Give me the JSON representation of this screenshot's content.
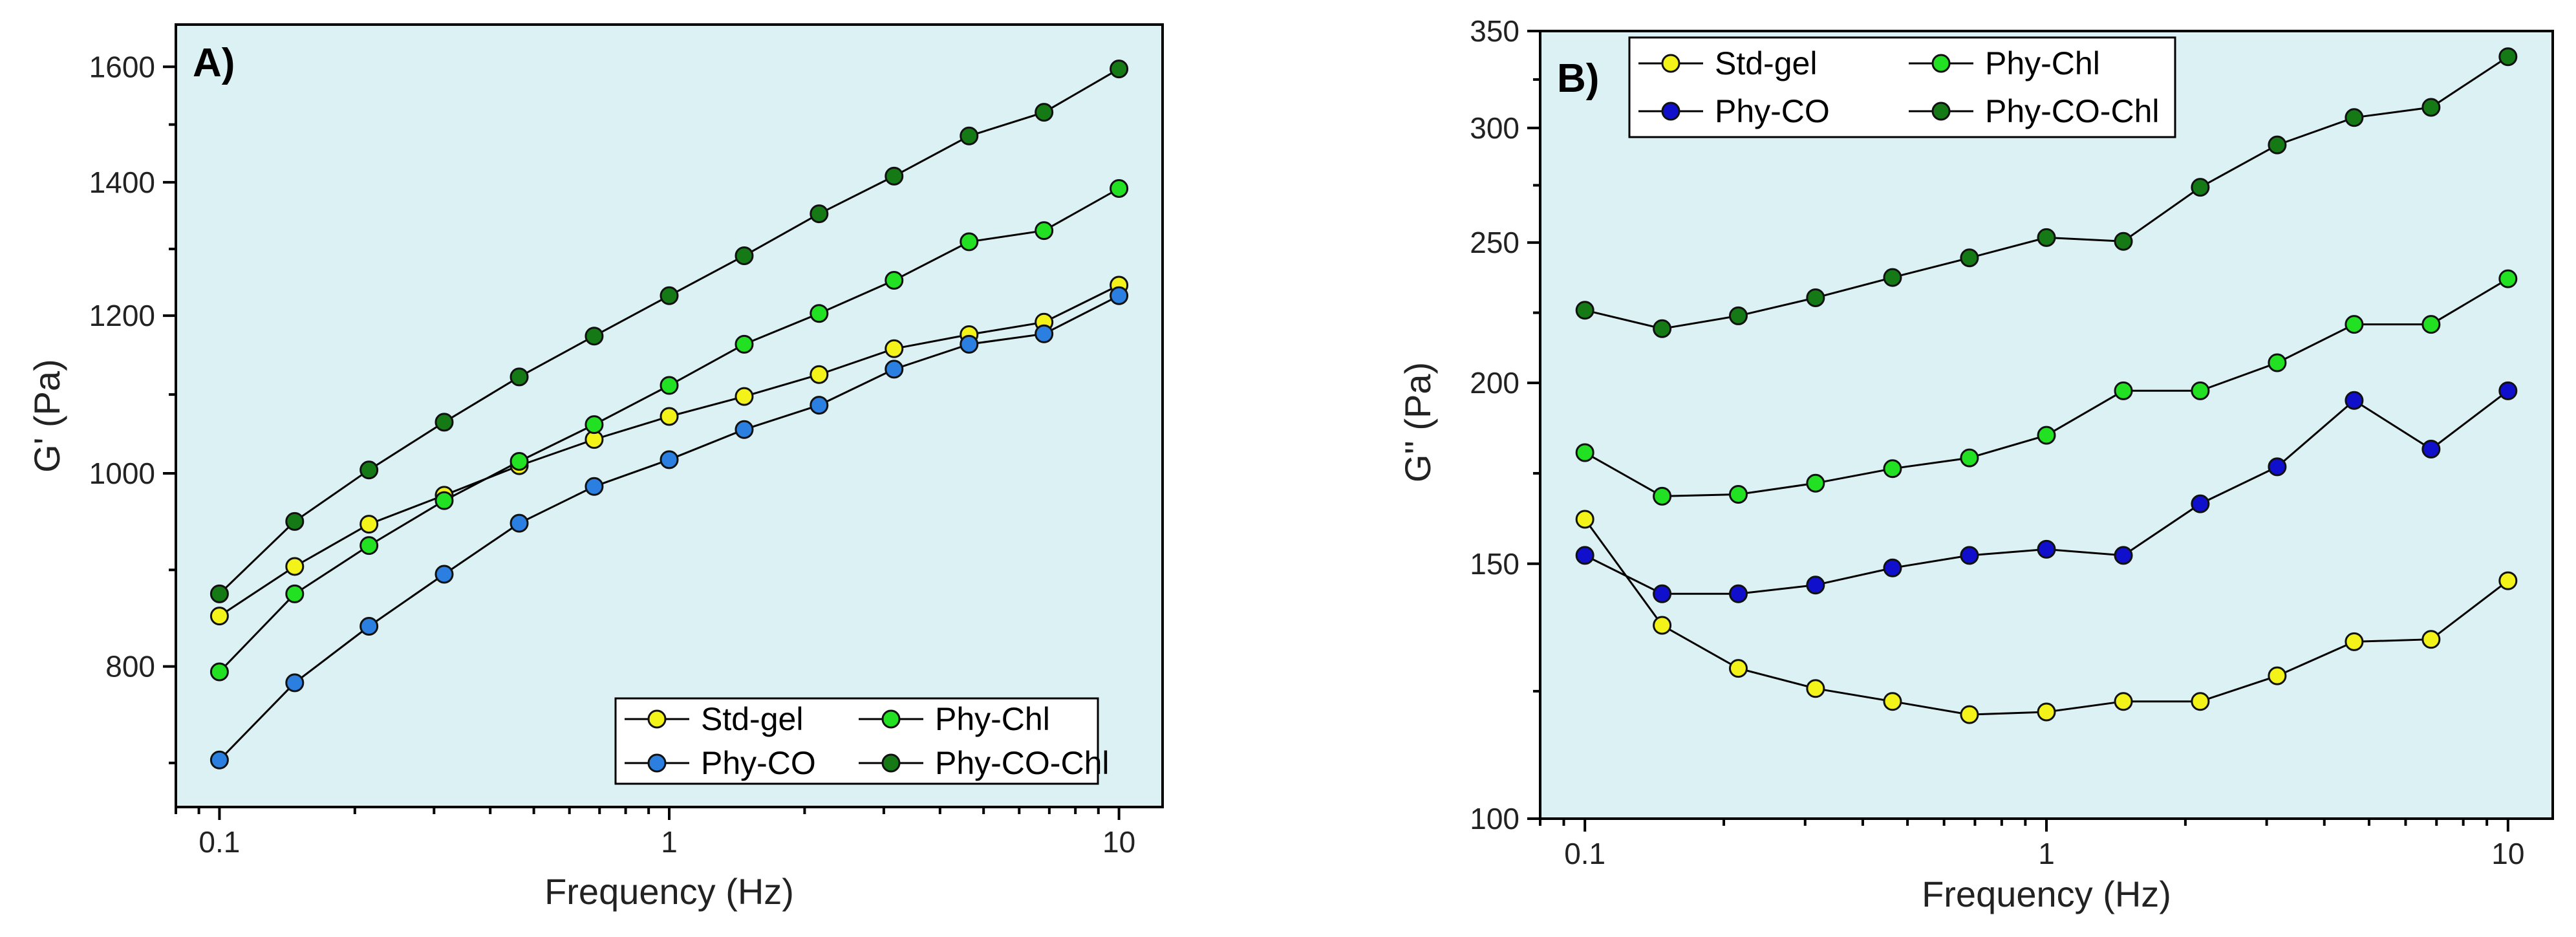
{
  "chart_data": [
    {
      "type": "line",
      "panel_label": "A)",
      "xlabel": "Frequency (Hz)",
      "ylabel": "G' (Pa)",
      "xscale": "log",
      "yscale": "log",
      "xlim": [
        0.08,
        12.5
      ],
      "ylim": [
        680,
        1680
      ],
      "x_ticks": [
        0.1,
        1,
        10
      ],
      "x_tick_labels": [
        "0.1",
        "1",
        "10"
      ],
      "y_ticks": [
        800,
        1000,
        1200,
        1400,
        1600
      ],
      "y_tick_labels": [
        "800",
        "1000",
        "1200",
        "1400",
        "1600"
      ],
      "legend_position": "bottom-right",
      "x": [
        0.1,
        0.147,
        0.215,
        0.316,
        0.464,
        0.681,
        1,
        1.468,
        2.154,
        3.162,
        4.642,
        6.813,
        10
      ],
      "series": [
        {
          "name": "Std-gel",
          "color": "#f3f31a",
          "values": [
            848,
            898,
            943,
            975,
            1009,
            1040,
            1068,
            1093,
            1121,
            1155,
            1174,
            1191,
            1243
          ]
        },
        {
          "name": "Phy-Chl",
          "color": "#22e022",
          "values": [
            795,
            870,
            920,
            969,
            1014,
            1058,
            1107,
            1161,
            1203,
            1250,
            1307,
            1324,
            1390
          ]
        },
        {
          "name": "Phy-CO",
          "color": "#2a7fe0",
          "values": [
            718,
            785,
            838,
            890,
            944,
            985,
            1016,
            1052,
            1082,
            1128,
            1161,
            1175,
            1228
          ]
        },
        {
          "name": "Phy-CO-Chl",
          "color": "#157a15",
          "values": [
            870,
            946,
            1004,
            1061,
            1118,
            1172,
            1228,
            1286,
            1350,
            1410,
            1477,
            1518,
            1596
          ]
        }
      ]
    },
    {
      "type": "line",
      "panel_label": "B)",
      "xlabel": "Frequency (Hz)",
      "ylabel": "G'' (Pa)",
      "xscale": "log",
      "yscale": "log",
      "xlim": [
        0.08,
        12.5
      ],
      "ylim": [
        100,
        350
      ],
      "x_ticks": [
        0.1,
        1,
        10
      ],
      "x_tick_labels": [
        "0.1",
        "1",
        "10"
      ],
      "y_ticks": [
        100,
        150,
        200,
        250,
        300,
        350
      ],
      "y_tick_labels": [
        "100",
        "150",
        "200",
        "250",
        "300",
        "350"
      ],
      "legend_position": "top-left",
      "x": [
        0.1,
        0.147,
        0.215,
        0.316,
        0.464,
        0.681,
        1,
        1.468,
        2.154,
        3.162,
        4.642,
        6.813,
        10
      ],
      "series": [
        {
          "name": "Std-gel",
          "color": "#f3f31a",
          "values": [
            161,
            136,
            127,
            123,
            120.5,
            118,
            118.5,
            120.5,
            120.5,
            125.5,
            132.5,
            133,
            146
          ]
        },
        {
          "name": "Phy-Chl",
          "color": "#22e022",
          "values": [
            179,
            167,
            167.5,
            170.5,
            174.5,
            177.5,
            184,
            197.5,
            197.5,
            206.5,
            219.5,
            219.5,
            236
          ]
        },
        {
          "name": "Phy-CO",
          "color": "#1010cc",
          "values": [
            152,
            143,
            143,
            145,
            149,
            152,
            153.5,
            152,
            165,
            175,
            194.5,
            180,
            197.5
          ]
        },
        {
          "name": "Phy-CO-Chl",
          "color": "#157a15",
          "values": [
            224.5,
            218,
            222.5,
            229,
            236.5,
            244,
            252,
            250.5,
            273,
            292,
            305,
            310,
            336
          ]
        }
      ]
    }
  ]
}
